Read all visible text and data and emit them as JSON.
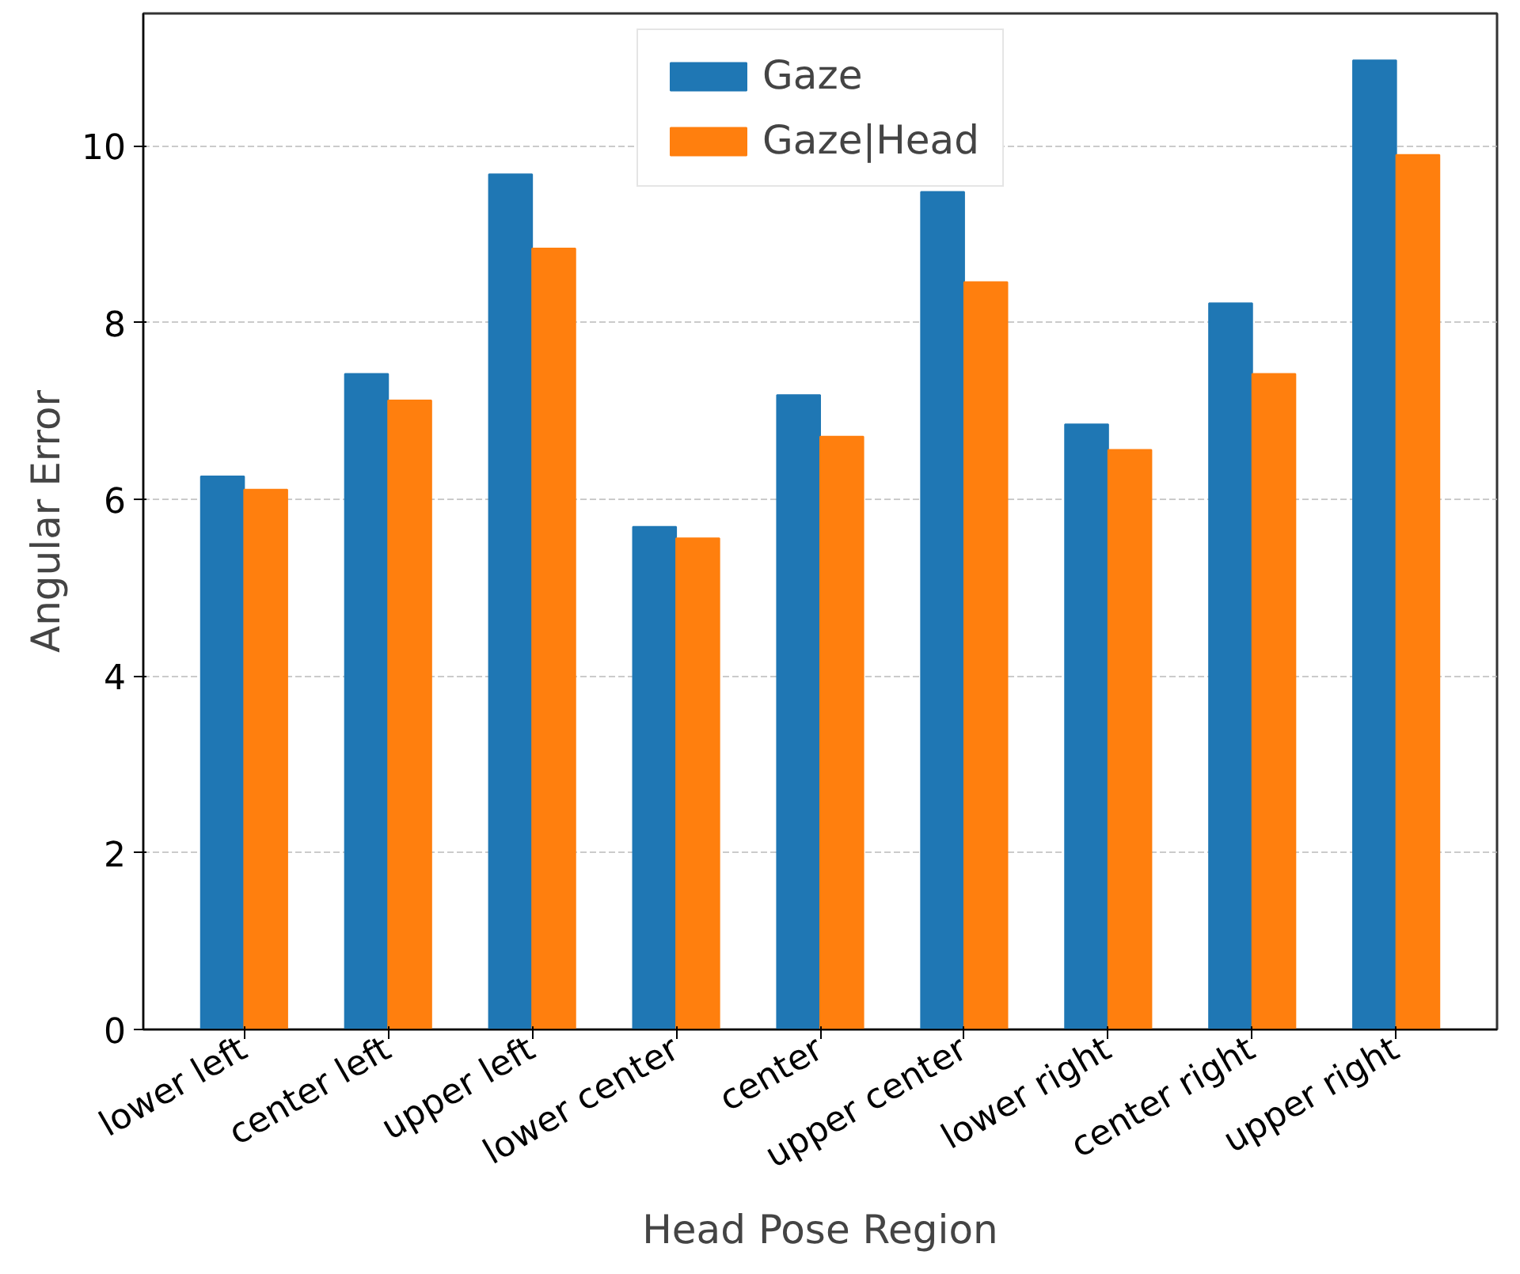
{
  "chart_data": {
    "type": "bar",
    "xlabel": "Head Pose Region",
    "ylabel": "Angular Error",
    "categories": [
      "lower left",
      "center left",
      "upper left",
      "lower center",
      "center",
      "upper center",
      "lower right",
      "center right",
      "upper right"
    ],
    "series": [
      {
        "name": "Gaze",
        "color": "#1f77b4",
        "values": [
          6.26,
          7.42,
          9.68,
          5.69,
          7.18,
          9.48,
          6.85,
          8.22,
          10.97
        ]
      },
      {
        "name": "Gaze|Head",
        "color": "#ff7f0e",
        "values": [
          6.11,
          7.12,
          8.84,
          5.56,
          6.71,
          8.46,
          6.56,
          7.42,
          9.9
        ]
      }
    ],
    "ylim": [
      0,
      11.5
    ],
    "yticks": [
      0,
      2,
      4,
      6,
      8,
      10
    ],
    "grid": "y",
    "legend": "top"
  }
}
